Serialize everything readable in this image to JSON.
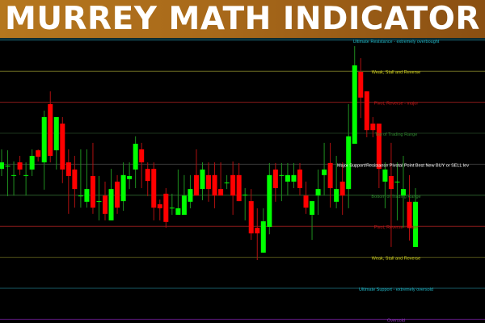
{
  "banner": {
    "title": "MURREY MATH INDICATOR"
  },
  "chart_data": {
    "type": "candlestick",
    "title": "",
    "colors": {
      "up": "#00ff00",
      "down": "#ff0000",
      "background": "#000000"
    },
    "levels": [
      {
        "value": 8,
        "label": "Ultimate Resistance - extremely overbought",
        "line_color": "#175a66",
        "text_color": "#22b8c8"
      },
      {
        "value": 7,
        "label": "Weak, Stall and Reverse",
        "line_color": "#6e6e22",
        "text_color": "#d8d820"
      },
      {
        "value": 6,
        "label": "Pivot, Reverse - major",
        "line_color": "#8a1a1a",
        "text_color": "#c81818"
      },
      {
        "value": 5,
        "label": "Top of Trading Range",
        "line_color": "#1c331c",
        "text_color": "#2f8a2f"
      },
      {
        "value": 4,
        "label": "Major Support/Resistance Pivotal Point Best New BUY or SELL lev",
        "line_color": "#3a3a3a",
        "text_color": "#ffffff"
      },
      {
        "value": 3,
        "label": "Bottom of Trading Range",
        "line_color": "#2a5a2a",
        "text_color": "#2f8a2f"
      },
      {
        "value": 2,
        "label": "Pivot, Reverse - major",
        "line_color": "#8a1a1a",
        "text_color": "#c81818"
      },
      {
        "value": 1,
        "label": "Weak, Stall and Reverse",
        "line_color": "#55551a",
        "text_color": "#d8d820"
      },
      {
        "value": 0,
        "label": "Ultimate Support - extremely oversold",
        "line_color": "#175a66",
        "text_color": "#22b8c8"
      },
      {
        "value": -1,
        "label": "Oversold",
        "line_color": "#5a1a7a",
        "text_color": "#9a3ac8"
      }
    ],
    "candles": [
      [
        3.85,
        4.48,
        3.62,
        4.06
      ],
      [
        3.95,
        4.45,
        2.97,
        3.95
      ],
      [
        3.65,
        4.09,
        2.99,
        3.65
      ],
      [
        4.06,
        4.27,
        3.65,
        3.83
      ],
      [
        3.65,
        4.06,
        2.99,
        3.65
      ],
      [
        3.83,
        4.48,
        3.62,
        4.27
      ],
      [
        4.45,
        4.48,
        4.09,
        4.24
      ],
      [
        4.06,
        5.73,
        3.18,
        5.52
      ],
      [
        5.94,
        6.35,
        4.06,
        4.27
      ],
      [
        4.45,
        5.52,
        3.83,
        5.52
      ],
      [
        5.31,
        5.52,
        3.39,
        3.83
      ],
      [
        4.06,
        4.48,
        2.4,
        3.62
      ],
      [
        3.83,
        4.27,
        2.6,
        3.2
      ],
      [
        2.99,
        4.48,
        2.6,
        2.99
      ],
      [
        2.79,
        4.48,
        2.6,
        3.2
      ],
      [
        3.62,
        4.69,
        2.4,
        2.6
      ],
      [
        2.81,
        3.62,
        2.19,
        2.81
      ],
      [
        2.99,
        3.44,
        2.19,
        2.4
      ],
      [
        2.19,
        3.85,
        2.19,
        3.2
      ],
      [
        3.44,
        3.65,
        2.4,
        2.6
      ],
      [
        2.81,
        4.06,
        2.5,
        3.65
      ],
      [
        3.52,
        4.06,
        3.2,
        3.62
      ],
      [
        3.83,
        4.9,
        3.23,
        4.66
      ],
      [
        4.48,
        4.69,
        3.23,
        4.06
      ],
      [
        3.85,
        4.06,
        2.97,
        3.46
      ],
      [
        3.85,
        4.06,
        2.19,
        2.6
      ],
      [
        2.71,
        2.86,
        2.19,
        2.58
      ],
      [
        3.05,
        3.23,
        1.95,
        2.14
      ],
      [
        2.6,
        3.05,
        2.37,
        2.6
      ],
      [
        2.37,
        3.83,
        2.37,
        2.58
      ],
      [
        2.37,
        3.65,
        2.37,
        2.99
      ],
      [
        2.79,
        3.65,
        2.58,
        3.2
      ],
      [
        3.65,
        4.48,
        2.99,
        2.99
      ],
      [
        3.2,
        4.06,
        2.84,
        3.83
      ],
      [
        3.65,
        4.06,
        2.79,
        3.2
      ],
      [
        3.65,
        4.06,
        2.58,
        2.99
      ],
      [
        3.2,
        4.06,
        2.99,
        2.99
      ],
      [
        3.41,
        3.65,
        3.2,
        3.41
      ],
      [
        3.65,
        4.09,
        2.37,
        2.99
      ],
      [
        3.65,
        4.04,
        2.81,
        2.81
      ],
      [
        3.02,
        3.23,
        2.19,
        3.02
      ],
      [
        2.81,
        3.2,
        1.56,
        1.77
      ],
      [
        1.95,
        2.58,
        0.91,
        1.77
      ],
      [
        1.15,
        2.58,
        1.15,
        2.16
      ],
      [
        1.98,
        4.04,
        1.74,
        3.65
      ],
      [
        3.83,
        4.04,
        2.79,
        3.23
      ],
      [
        3.65,
        4.04,
        2.81,
        3.65
      ],
      [
        3.44,
        4.04,
        2.99,
        3.65
      ],
      [
        3.44,
        4.04,
        3.23,
        3.65
      ],
      [
        3.83,
        4.04,
        2.99,
        3.23
      ],
      [
        2.99,
        3.44,
        2.4,
        2.6
      ],
      [
        2.37,
        2.81,
        1.56,
        2.81
      ],
      [
        2.99,
        3.83,
        2.37,
        3.2
      ],
      [
        3.65,
        4.69,
        2.99,
        3.83
      ],
      [
        4.04,
        4.69,
        2.6,
        3.23
      ],
      [
        2.79,
        4.27,
        2.58,
        3.2
      ],
      [
        3.44,
        4.06,
        2.37,
        2.99
      ],
      [
        3.2,
        5.94,
        2.58,
        4.9
      ],
      [
        4.66,
        7.81,
        4.66,
        7.19
      ],
      [
        6.98,
        7.42,
        5.49,
        6.15
      ],
      [
        6.35,
        6.35,
        4.87,
        5.1
      ],
      [
        5.31,
        5.52,
        4.87,
        5.1
      ],
      [
        5.31,
        5.31,
        3.23,
        3.85
      ],
      [
        3.44,
        4.06,
        2.58,
        3.83
      ],
      [
        3.62,
        4.69,
        1.33,
        3.2
      ],
      [
        3.44,
        4.06,
        2.19,
        3.44
      ],
      [
        2.99,
        4.27,
        1.95,
        3.2
      ],
      [
        2.79,
        3.65,
        1.54,
        1.95
      ],
      [
        1.33,
        3.23,
        1.33,
        2.79
      ]
    ]
  }
}
